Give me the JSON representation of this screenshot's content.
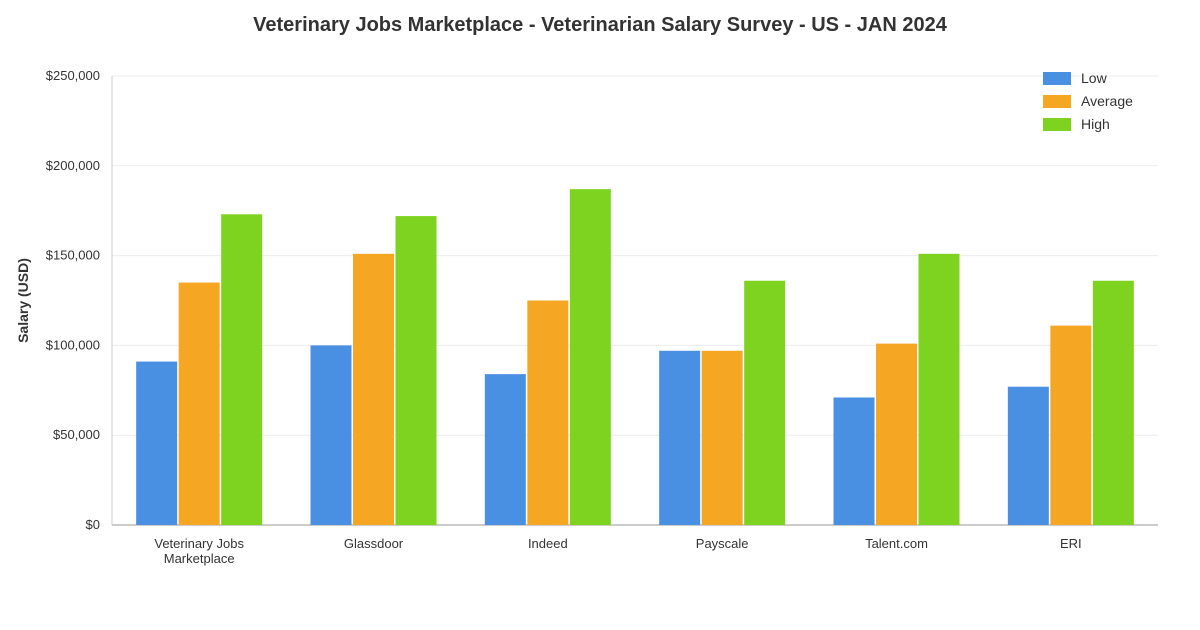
{
  "chart_data": {
    "type": "bar",
    "title": "Veterinary Jobs Marketplace - Veterinarian Salary Survey - US - JAN 2024",
    "xlabel": "",
    "ylabel": "Salary (USD)",
    "ylim": [
      0,
      250000
    ],
    "yticks": [
      "$0",
      "$50,000",
      "$100,000",
      "$150,000",
      "$200,000",
      "$250,000"
    ],
    "categories": [
      [
        "Veterinary Jobs",
        "Marketplace"
      ],
      [
        "Glassdoor"
      ],
      [
        "Indeed"
      ],
      [
        "Payscale"
      ],
      [
        "Talent.com"
      ],
      [
        "ERI"
      ]
    ],
    "series": [
      {
        "name": "Low",
        "color": "#4a90e2",
        "values": [
          91000,
          100000,
          84000,
          97000,
          71000,
          77000
        ]
      },
      {
        "name": "Average",
        "color": "#f5a623",
        "values": [
          135000,
          151000,
          125000,
          97000,
          101000,
          111000
        ]
      },
      {
        "name": "High",
        "color": "#7ed321",
        "values": [
          173000,
          172000,
          187000,
          136000,
          151000,
          136000
        ]
      }
    ],
    "grid": true,
    "legend_position": "top-right"
  }
}
